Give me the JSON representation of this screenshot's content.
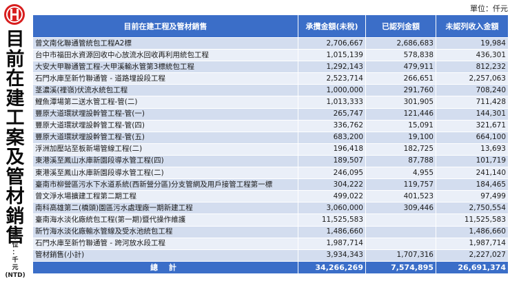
{
  "unit_top": "單位：仟元",
  "sidebar": {
    "title_chars": [
      "目",
      "前",
      "在",
      "建",
      "工",
      "案",
      "及",
      "管",
      "材",
      "銷",
      "售"
    ],
    "unit_lines": [
      "單",
      "位",
      "：",
      "千",
      "元",
      "(NTD)"
    ]
  },
  "table": {
    "headers": [
      "目前在建工程及管材銷售",
      "承攬金額(未稅)",
      "已認列金額",
      "未認列收入金額"
    ],
    "rows": [
      [
        "曾文南化聯通管統包工程A2標",
        "2,706,667",
        "2,686,683",
        "19,984"
      ],
      [
        "台中市福田水資源回收中心放流水回收再利用統包工程",
        "1,015,139",
        "578,838",
        "436,301"
      ],
      [
        "大安大甲聯通管工程-大甲溪輸水管第3標統包工程",
        "1,292,143",
        "479,911",
        "812,232"
      ],
      [
        "石門水庫至新竹聯通管 - 道路埋設段工程",
        "2,523,714",
        "266,651",
        "2,257,063"
      ],
      [
        "茎濃溪(裡嶺)伏流水統包工程",
        "1,000,000",
        "291,760",
        "708,240"
      ],
      [
        "鯉魚潭場第二送水管工程-管(二)",
        "1,013,333",
        "301,905",
        "711,428"
      ],
      [
        "豐原大道環狀埋設幹管工程-管(一)",
        "265,747",
        "121,446",
        "144,301"
      ],
      [
        "豐原大道環狀埋設幹管工程-管(四)",
        "336,762",
        "15,091",
        "321,671"
      ],
      [
        "豐原大道環狀埋設幹管工程-管(五)",
        "683,200",
        "19,100",
        "664,100"
      ],
      [
        "浮洲加壓站至板新場管線工程(二)",
        "196,418",
        "182,725",
        "13,693"
      ],
      [
        "東港溪至鳳山水庫新園段導水管工程(四)",
        "189,507",
        "87,788",
        "101,719"
      ],
      [
        "東港溪至鳳山水庫新園段導水管工程(二)",
        "246,095",
        "4,955",
        "241,140"
      ],
      [
        "臺南市柳營區污水下水道系統(西新營分區)分支管網及用戶接管工程第一標",
        "304,222",
        "119,757",
        "184,465"
      ],
      [
        "曾文淨水場擴建工程第二期工程",
        "499,022",
        "401,523",
        "97,499"
      ],
      [
        "南科高雄第二(橋頭)園區污水處理廠一期新建工程",
        "3,060,000",
        "309,446",
        "2,750,554"
      ],
      [
        "臺南海水淡化廠統包工程(第一期)暨代操作維護",
        "11,525,583",
        "",
        "11,525,583"
      ],
      [
        "新竹海水淡化廠輸水管線及受水池統包工程",
        "1,486,660",
        "",
        "1,486,660"
      ],
      [
        "石門水庫至新竹聯通管 - 跨河放水段工程",
        "1,987,714",
        "",
        "1,987,714"
      ],
      [
        "管材銷售(小計)",
        "3,934,343",
        "1,707,316",
        "2,227,027"
      ]
    ],
    "total": {
      "label": "總 計",
      "values": [
        "34,266,269",
        "7,574,895",
        "26,691,374"
      ]
    }
  },
  "colors": {
    "header_blue": "#3b6ec8",
    "row_odd": "#d3ddef",
    "row_even": "#eaeff8",
    "logo_red": "#d81e1e"
  }
}
